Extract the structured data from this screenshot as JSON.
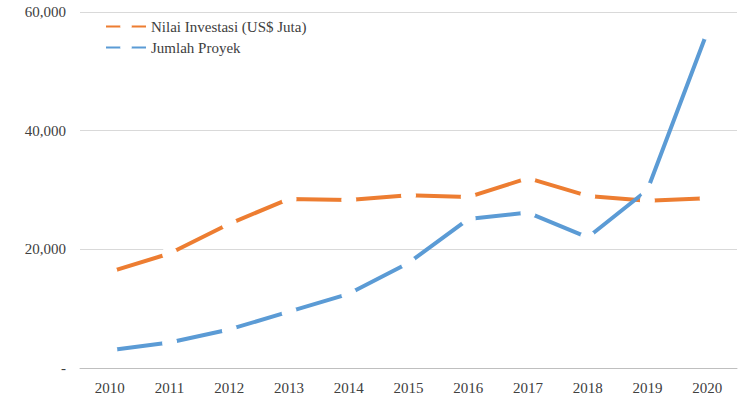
{
  "chart_data": {
    "type": "line",
    "categories": [
      "2010",
      "2011",
      "2012",
      "2013",
      "2014",
      "2015",
      "2016",
      "2017",
      "2018",
      "2019",
      "2020"
    ],
    "series": [
      {
        "name": "Nilai Investasi (US$ Juta)",
        "color": "#ed7d31",
        "marker": "circle",
        "line_style": "solid",
        "values": [
          16200,
          19300,
          24300,
          28500,
          28300,
          29100,
          28800,
          32000,
          29000,
          28200,
          28600
        ]
      },
      {
        "name": "Jumlah Proyek",
        "color": "#5b9bd5",
        "marker": "circle",
        "line_style": "solid",
        "values": [
          3000,
          4300,
          6500,
          9500,
          12500,
          17700,
          25100,
          26200,
          22000,
          30000,
          56600
        ]
      }
    ],
    "ylim": [
      0,
      60000
    ],
    "yticks": [
      {
        "value": 0,
        "label": "-"
      },
      {
        "value": 20000,
        "label": "20,000"
      },
      {
        "value": 40000,
        "label": "40,000"
      },
      {
        "value": 60000,
        "label": "60,000"
      }
    ],
    "grid": true,
    "legend": "upper left"
  }
}
